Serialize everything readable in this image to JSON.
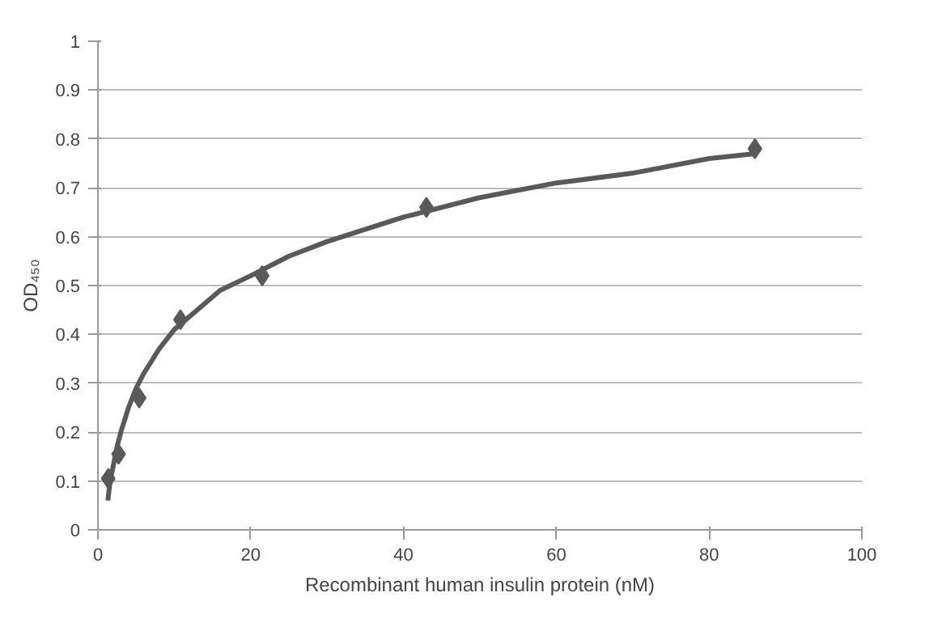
{
  "chart_data": {
    "type": "scatter",
    "xlabel": "Recombinant human insulin protein (nM)",
    "ylabel": "OD₄₅₀",
    "xlim": [
      0,
      100
    ],
    "xticks": [
      0,
      20,
      40,
      60,
      80,
      100
    ],
    "ylim": [
      0,
      1
    ],
    "yticks": [
      0,
      0.1,
      0.2,
      0.3,
      0.4,
      0.5,
      0.6,
      0.7,
      0.8,
      0.9,
      1
    ],
    "grid": "y",
    "series": [
      {
        "marker": "diamond",
        "color": "#595959",
        "x": [
          1.35,
          2.7,
          5.4,
          10.8,
          21.5,
          43,
          86
        ],
        "values": [
          0.105,
          0.155,
          0.27,
          0.43,
          0.52,
          0.66,
          0.78
        ]
      },
      {
        "type": "line",
        "marker": "none",
        "color": "#595959",
        "line_style": "solid",
        "x": [
          1.3,
          1.6,
          2,
          2.5,
          3,
          4,
          5,
          6,
          8,
          10,
          13,
          16,
          20,
          25,
          30,
          40,
          50,
          60,
          70,
          80,
          86
        ],
        "values": [
          0.06,
          0.1,
          0.13,
          0.17,
          0.2,
          0.25,
          0.29,
          0.32,
          0.37,
          0.41,
          0.45,
          0.49,
          0.52,
          0.56,
          0.59,
          0.64,
          0.68,
          0.71,
          0.73,
          0.76,
          0.77
        ]
      }
    ]
  }
}
